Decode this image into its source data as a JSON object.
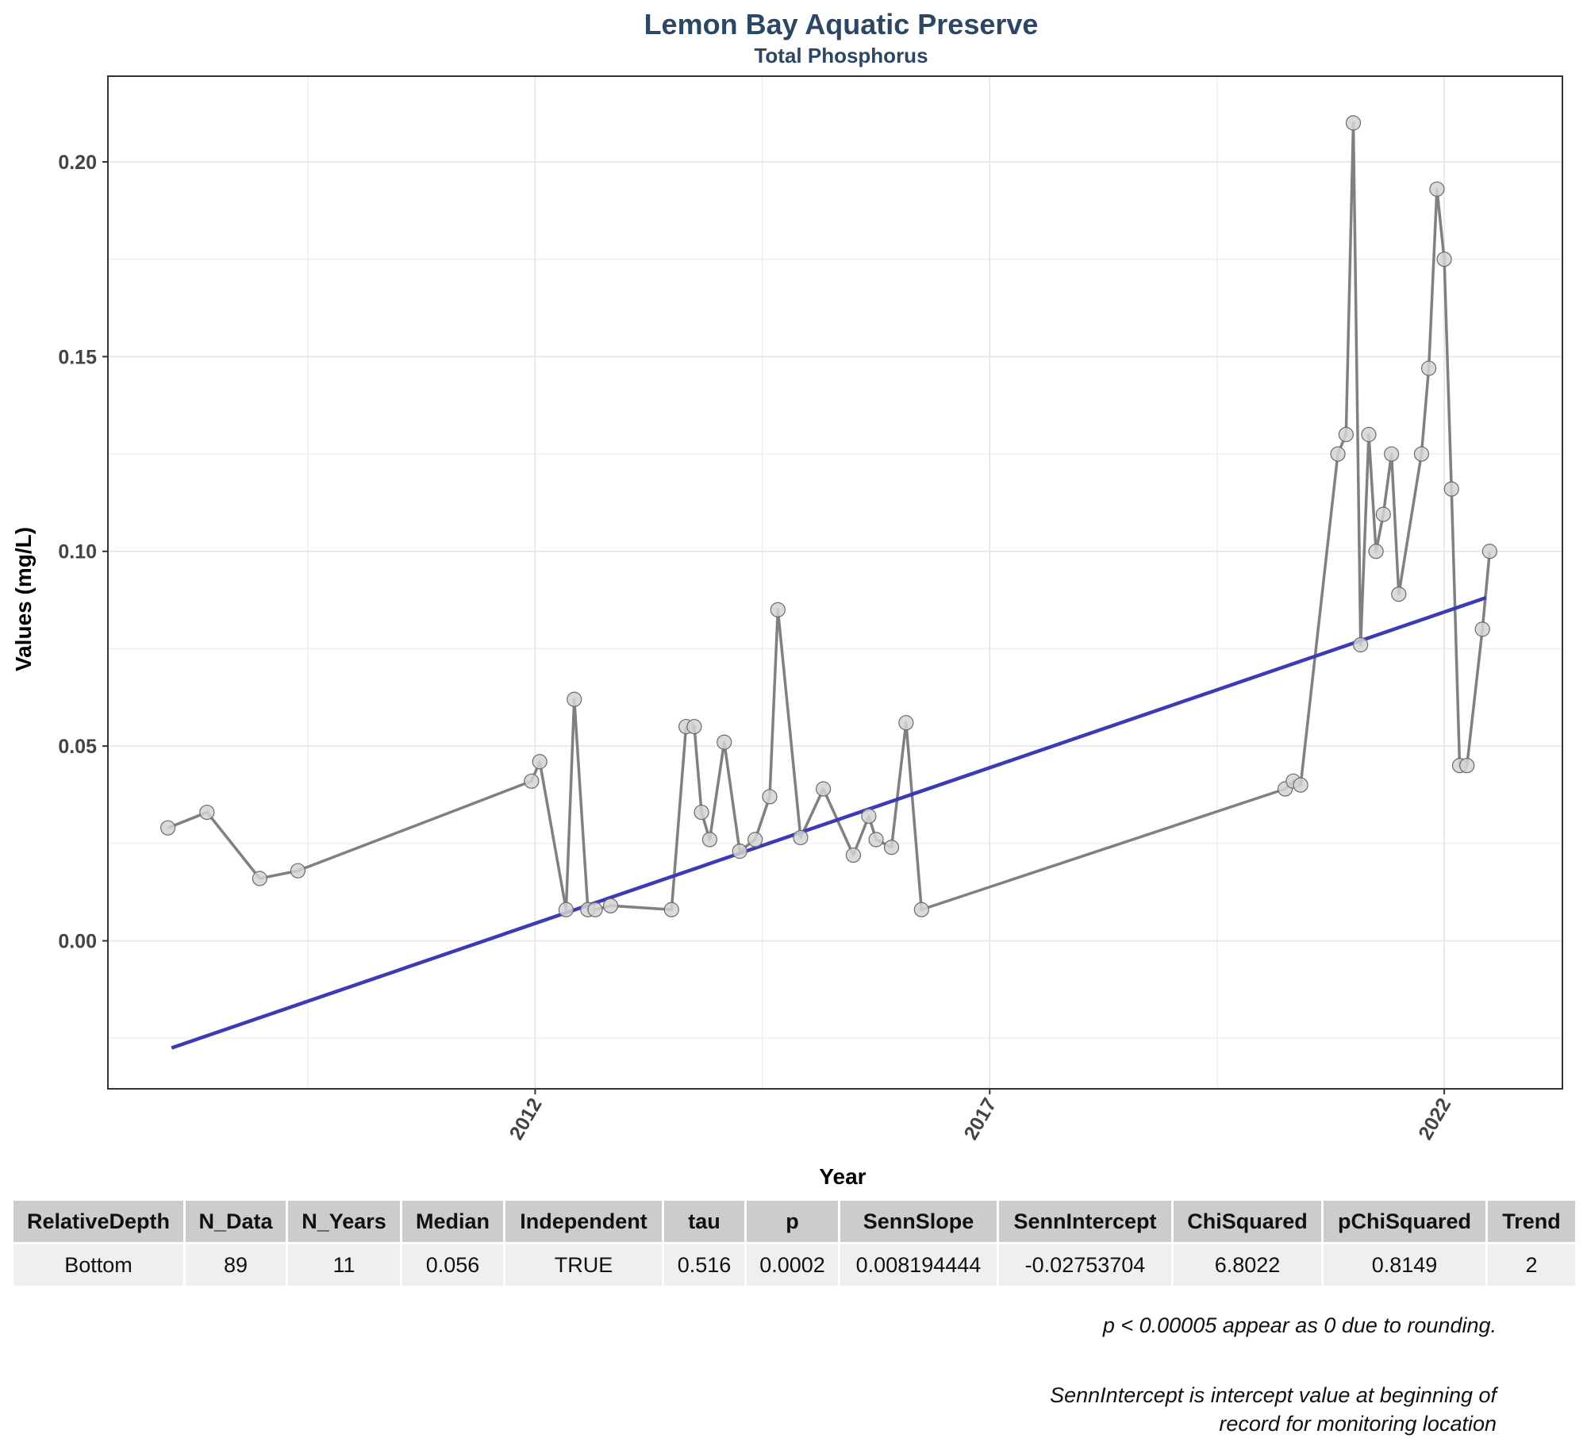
{
  "chart_data": {
    "type": "line",
    "title": "Lemon Bay Aquatic Preserve",
    "subtitle": "Total Phosphorus",
    "xlabel": "Year",
    "ylabel": "Values (mg/L)",
    "x_ticks": [
      "2012",
      "2017",
      "2022"
    ],
    "y_ticks": [
      "0.00",
      "0.05",
      "0.10",
      "0.15",
      "0.20"
    ],
    "xlim": [
      2007.3,
      2023.3
    ],
    "ylim": [
      -0.038,
      0.222
    ],
    "grid": true,
    "series": [
      {
        "color": "#808080",
        "marker_color": "#d3d3d3",
        "points": [
          [
            2007.96,
            0.029
          ],
          [
            2008.39,
            0.033
          ],
          [
            2008.97,
            0.016
          ],
          [
            2009.39,
            0.018
          ],
          [
            2011.96,
            0.041
          ],
          [
            2012.05,
            0.046
          ],
          [
            2012.34,
            0.008
          ],
          [
            2012.43,
            0.062
          ],
          [
            2012.58,
            0.008
          ],
          [
            2012.66,
            0.008
          ],
          [
            2012.83,
            0.009
          ],
          [
            2013.5,
            0.008
          ],
          [
            2013.66,
            0.055
          ],
          [
            2013.75,
            0.055
          ],
          [
            2013.83,
            0.033
          ],
          [
            2013.92,
            0.026
          ],
          [
            2014.08,
            0.051
          ],
          [
            2014.25,
            0.023
          ],
          [
            2014.42,
            0.026
          ],
          [
            2014.58,
            0.037
          ],
          [
            2014.67,
            0.085
          ],
          [
            2014.92,
            0.0265
          ],
          [
            2015.17,
            0.039
          ],
          [
            2015.5,
            0.022
          ],
          [
            2015.67,
            0.032
          ],
          [
            2015.75,
            0.026
          ],
          [
            2015.92,
            0.024
          ],
          [
            2016.08,
            0.056
          ],
          [
            2016.25,
            0.008
          ],
          [
            2020.25,
            0.039
          ],
          [
            2020.34,
            0.041
          ],
          [
            2020.42,
            0.04
          ],
          [
            2020.83,
            0.125
          ],
          [
            2020.92,
            0.13
          ],
          [
            2021.0,
            0.21
          ],
          [
            2021.08,
            0.076
          ],
          [
            2021.17,
            0.13
          ],
          [
            2021.25,
            0.1
          ],
          [
            2021.33,
            0.1095
          ],
          [
            2021.42,
            0.125
          ],
          [
            2021.5,
            0.089
          ],
          [
            2021.75,
            0.125
          ],
          [
            2021.83,
            0.147
          ],
          [
            2021.92,
            0.193
          ],
          [
            2022.0,
            0.175
          ],
          [
            2022.08,
            0.116
          ],
          [
            2022.17,
            0.045
          ],
          [
            2022.25,
            0.045
          ],
          [
            2022.42,
            0.08
          ],
          [
            2022.5,
            0.1
          ]
        ]
      },
      {
        "color": "#3b3bb8",
        "kind": "trend",
        "points": [
          [
            2008.0,
            -0.0275
          ],
          [
            2022.46,
            0.0881
          ]
        ]
      }
    ],
    "table": {
      "headers": [
        "RelativeDepth",
        "N_Data",
        "N_Years",
        "Median",
        "Independent",
        "tau",
        "p",
        "SennSlope",
        "SennIntercept",
        "ChiSquared",
        "pChiSquared",
        "Trend"
      ],
      "rows": [
        [
          "Bottom",
          "89",
          "11",
          "0.056",
          "TRUE",
          "0.516",
          "0.0002",
          "0.008194444",
          "-0.02753704",
          "6.8022",
          "0.8149",
          "2"
        ]
      ]
    },
    "notes": [
      "p < 0.00005 appear as 0 due to rounding.",
      "SennIntercept is intercept value at beginning of",
      "record for monitoring location"
    ]
  }
}
